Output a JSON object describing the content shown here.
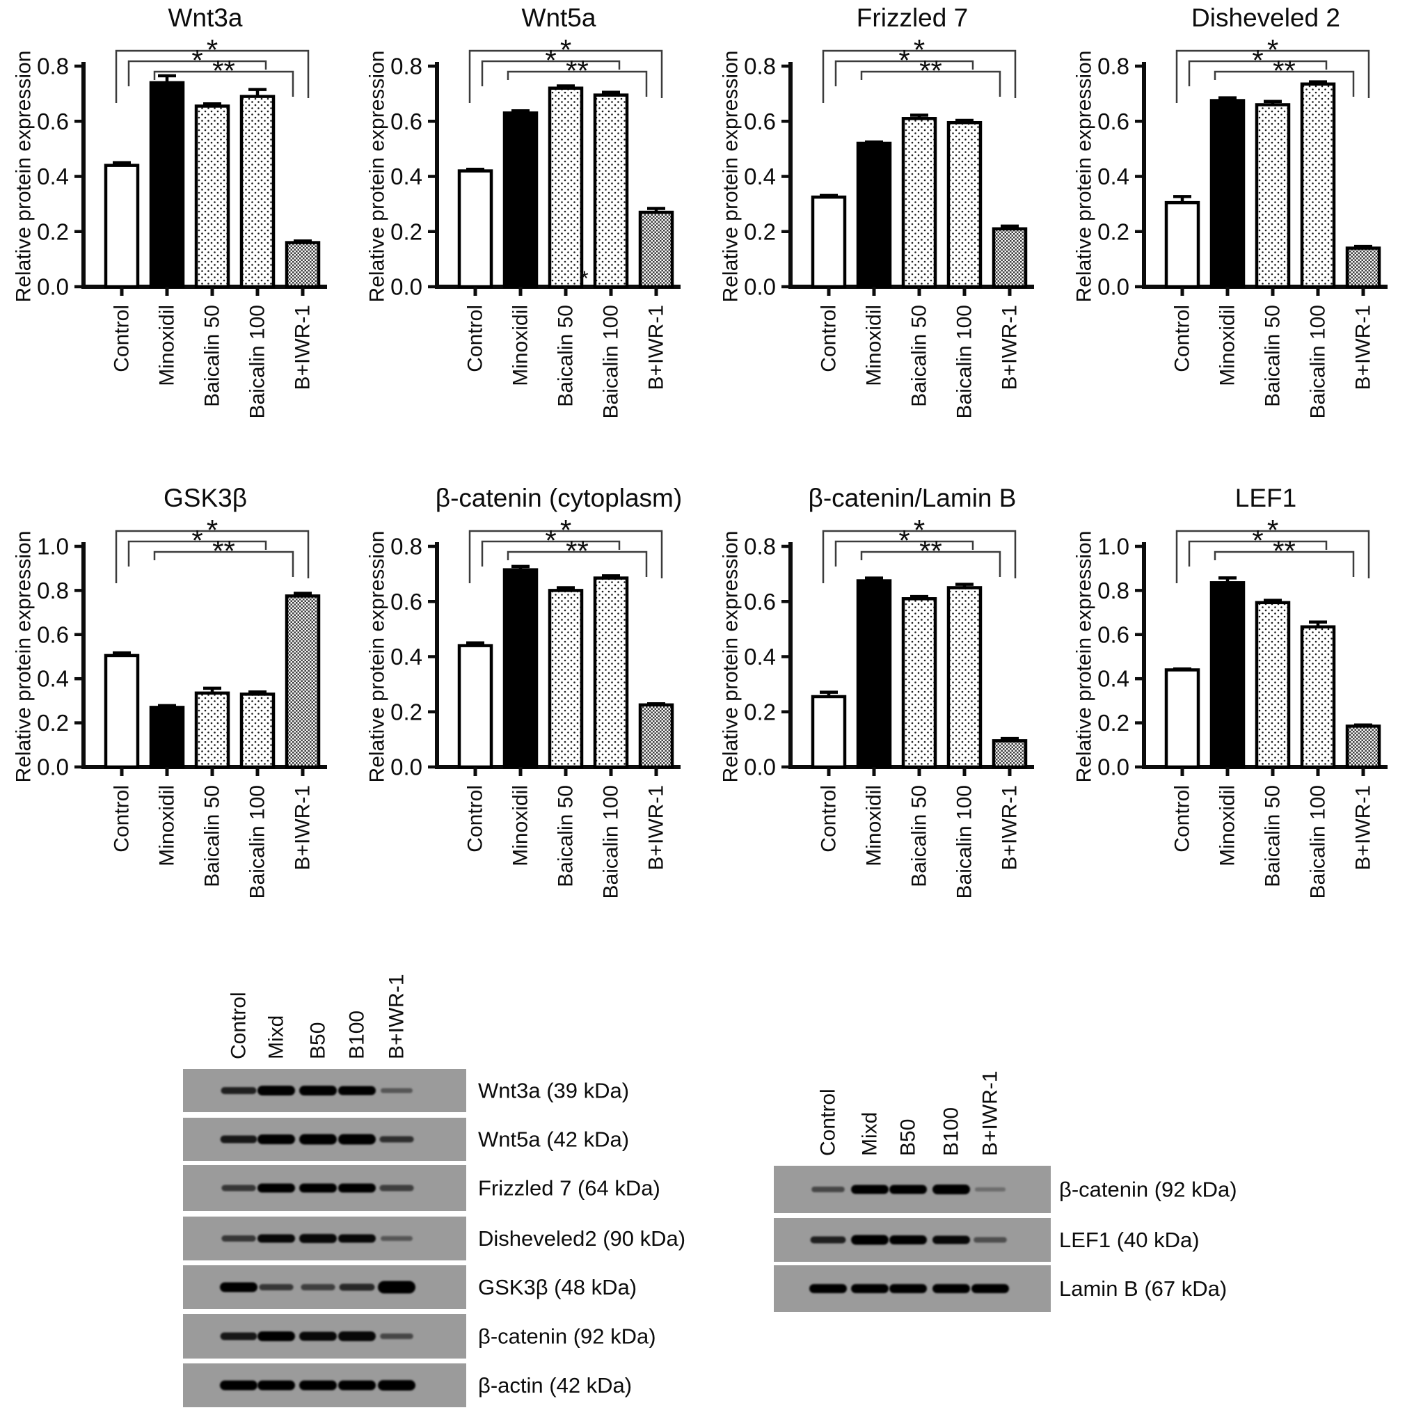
{
  "figure": {
    "background": "#ffffff",
    "ink_color": "#0c0c0c",
    "bracket_color": "#3c3c3c",
    "blot_panel_gray": "#9b9b9b",
    "band_color": "#060606"
  },
  "shared": {
    "ylabel": "Relative protein expression",
    "categories": [
      "Control",
      "Minoxidil",
      "Baicalin 50",
      "Baicalin 100",
      "B+IWR-1"
    ],
    "bar_styles": [
      "open",
      "solid",
      "dots",
      "dots",
      "checker"
    ],
    "significance_brackets": [
      {
        "from": 0,
        "to": 4,
        "label": "*"
      },
      {
        "from": 0,
        "to": 3,
        "label": "*"
      },
      {
        "from": 1,
        "to": 4,
        "label": "**"
      }
    ]
  },
  "chart_data": [
    {
      "type": "bar",
      "title": "Wnt3a",
      "ylabel": "Relative protein expression",
      "categories": [
        "Control",
        "Minoxidil",
        "Baicalin 50",
        "Baicalin 100",
        "B+IWR-1"
      ],
      "values": [
        0.44,
        0.74,
        0.655,
        0.69,
        0.16
      ],
      "errors": [
        0.01,
        0.025,
        0.008,
        0.025,
        0.006
      ],
      "ylim": [
        0,
        0.8
      ],
      "yticks": [
        0,
        0.2,
        0.4,
        0.6,
        0.8
      ],
      "grid": false,
      "legend": false
    },
    {
      "type": "bar",
      "title": "Wnt5a",
      "ylabel": "Relative protein expression",
      "categories": [
        "Control",
        "Minoxidil",
        "Baicalin 50",
        "Baicalin 100",
        "B+IWR-1"
      ],
      "values": [
        0.42,
        0.63,
        0.72,
        0.695,
        0.27
      ],
      "errors": [
        0.006,
        0.008,
        0.008,
        0.01,
        0.014
      ],
      "ylim": [
        0,
        0.8
      ],
      "yticks": [
        0,
        0.2,
        0.4,
        0.6,
        0.8
      ],
      "grid": false,
      "legend": false,
      "annotations": [
        {
          "text": "*",
          "bar_index": 2,
          "y_value": 0.03
        }
      ]
    },
    {
      "type": "bar",
      "title": "Frizzled 7",
      "ylabel": "Relative protein expression",
      "categories": [
        "Control",
        "Minoxidil",
        "Baicalin 50",
        "Baicalin 100",
        "B+IWR-1"
      ],
      "values": [
        0.325,
        0.52,
        0.61,
        0.595,
        0.21
      ],
      "errors": [
        0.006,
        0.005,
        0.012,
        0.008,
        0.01
      ],
      "ylim": [
        0,
        0.8
      ],
      "yticks": [
        0,
        0.2,
        0.4,
        0.6,
        0.8
      ],
      "grid": false,
      "legend": false
    },
    {
      "type": "bar",
      "title": "Disheveled 2",
      "ylabel": "Relative protein expression",
      "categories": [
        "Control",
        "Minoxidil",
        "Baicalin 50",
        "Baicalin 100",
        "B+IWR-1"
      ],
      "values": [
        0.305,
        0.675,
        0.66,
        0.735,
        0.14
      ],
      "errors": [
        0.022,
        0.01,
        0.012,
        0.008,
        0.006
      ],
      "ylim": [
        0,
        0.8
      ],
      "yticks": [
        0,
        0.2,
        0.4,
        0.6,
        0.8
      ],
      "grid": false,
      "legend": false
    },
    {
      "type": "bar",
      "title": "GSK3β",
      "ylabel": "Relative protein expression",
      "categories": [
        "Control",
        "Minoxidil",
        "Baicalin 50",
        "Baicalin 100",
        "B+IWR-1"
      ],
      "values": [
        0.505,
        0.27,
        0.335,
        0.33,
        0.775
      ],
      "errors": [
        0.012,
        0.008,
        0.022,
        0.01,
        0.012
      ],
      "ylim": [
        0,
        1.0
      ],
      "yticks": [
        0,
        0.2,
        0.4,
        0.6,
        0.8,
        1.0
      ],
      "grid": false,
      "legend": false
    },
    {
      "type": "bar",
      "title": "β-catenin (cytoplasm)",
      "ylabel": "Relative protein expression",
      "categories": [
        "Control",
        "Minoxidil",
        "Baicalin 50",
        "Baicalin 100",
        "B+IWR-1"
      ],
      "values": [
        0.44,
        0.715,
        0.64,
        0.685,
        0.225
      ],
      "errors": [
        0.01,
        0.012,
        0.01,
        0.008,
        0.004
      ],
      "ylim": [
        0,
        0.8
      ],
      "yticks": [
        0,
        0.2,
        0.4,
        0.6,
        0.8
      ],
      "grid": false,
      "legend": false
    },
    {
      "type": "bar",
      "title": "β-catenin/Lamin B",
      "ylabel": "Relative protein expression",
      "categories": [
        "Control",
        "Minoxidil",
        "Baicalin 50",
        "Baicalin 100",
        "B+IWR-1"
      ],
      "values": [
        0.255,
        0.675,
        0.61,
        0.65,
        0.095
      ],
      "errors": [
        0.016,
        0.01,
        0.008,
        0.012,
        0.008
      ],
      "ylim": [
        0,
        0.8
      ],
      "yticks": [
        0,
        0.2,
        0.4,
        0.6,
        0.8
      ],
      "grid": false,
      "legend": false
    },
    {
      "type": "bar",
      "title": "LEF1",
      "ylabel": "Relative protein expression",
      "categories": [
        "Control",
        "Minoxidil",
        "Baicalin 50",
        "Baicalin 100",
        "B+IWR-1"
      ],
      "values": [
        0.44,
        0.835,
        0.745,
        0.635,
        0.185
      ],
      "errors": [
        0.004,
        0.022,
        0.01,
        0.022,
        0.005
      ],
      "ylim": [
        0,
        1.0
      ],
      "yticks": [
        0,
        0.2,
        0.4,
        0.6,
        0.8,
        1.0
      ],
      "grid": false,
      "legend": false
    }
  ],
  "western_blots": {
    "lane_labels": [
      "Control",
      "Mixd",
      "B50",
      "B100",
      "B+IWR-1"
    ],
    "left_panel": {
      "rows": [
        {
          "label": "Wnt3a (39 kDa)",
          "bands": [
            [
              0.8,
              10
            ],
            [
              1,
              14
            ],
            [
              1,
              14
            ],
            [
              1,
              13
            ],
            [
              0.45,
              7
            ]
          ]
        },
        {
          "label": "Wnt5a (42 kDa)",
          "bands": [
            [
              0.85,
              11
            ],
            [
              1,
              14
            ],
            [
              1,
              15
            ],
            [
              1,
              15
            ],
            [
              0.7,
              9
            ]
          ]
        },
        {
          "label": "Frizzled 7 (64 kDa)",
          "bands": [
            [
              0.65,
              9
            ],
            [
              1,
              13
            ],
            [
              1,
              13
            ],
            [
              1,
              13
            ],
            [
              0.6,
              9
            ]
          ]
        },
        {
          "label": "Disheveled2 (90 kDa)",
          "bands": [
            [
              0.65,
              9
            ],
            [
              0.95,
              12
            ],
            [
              0.95,
              13
            ],
            [
              0.95,
              12
            ],
            [
              0.45,
              7
            ]
          ]
        },
        {
          "label": "GSK3β (48 kDa)",
          "bands": [
            [
              1,
              14
            ],
            [
              0.65,
              9
            ],
            [
              0.6,
              9
            ],
            [
              0.75,
              10
            ],
            [
              1,
              18
            ]
          ]
        },
        {
          "label": "β-catenin (92 kDa)",
          "bands": [
            [
              0.85,
              11
            ],
            [
              1,
              14
            ],
            [
              0.95,
              13
            ],
            [
              0.95,
              14
            ],
            [
              0.55,
              8
            ]
          ]
        },
        {
          "label": "β-actin (42 kDa)",
          "bands": [
            [
              1,
              14
            ],
            [
              1,
              14
            ],
            [
              1,
              14
            ],
            [
              1,
              14
            ],
            [
              1,
              15
            ]
          ]
        }
      ]
    },
    "right_panel": {
      "rows": [
        {
          "label": "β-catenin (92 kDa)",
          "bands": [
            [
              0.55,
              8
            ],
            [
              1,
              13
            ],
            [
              1,
              13
            ],
            [
              1,
              14
            ],
            [
              0.3,
              6
            ]
          ]
        },
        {
          "label": "LEF1 (40 kDa)",
          "bands": [
            [
              0.8,
              10
            ],
            [
              1,
              14
            ],
            [
              1,
              13
            ],
            [
              0.95,
              12
            ],
            [
              0.5,
              8
            ]
          ]
        },
        {
          "label": "Lamin B (67 kDa)",
          "bands": [
            [
              1,
              13
            ],
            [
              1,
              13
            ],
            [
              1,
              13
            ],
            [
              1,
              13
            ],
            [
              1,
              13
            ]
          ]
        }
      ]
    }
  }
}
